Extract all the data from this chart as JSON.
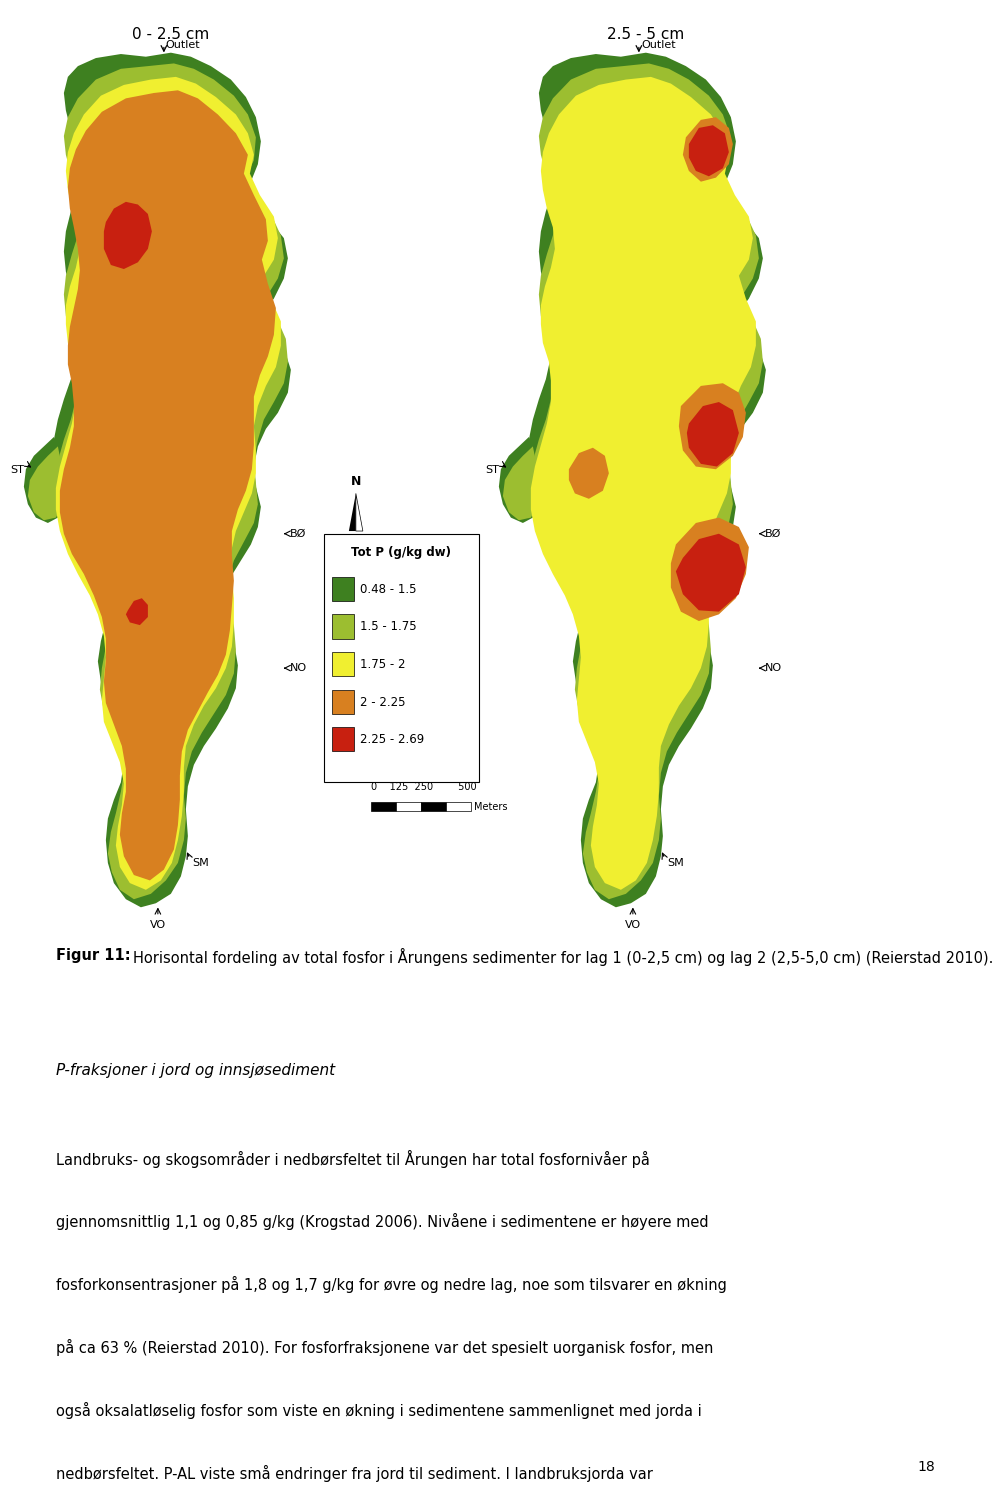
{
  "fig_width": 9.6,
  "fig_height": 14.69,
  "bg_color": "#ffffff",
  "map_bg_color": "#ccdce8",
  "title_left": "0 - 2.5 cm",
  "title_right": "2.5 - 5 cm",
  "legend_title": "Tot P (g/kg dw)",
  "legend_entries": [
    "0.48 - 1.5",
    "1.5 - 1.75",
    "1.75 - 2",
    "2 - 2.25",
    "2.25 - 2.69"
  ],
  "legend_colors": [
    "#3e8020",
    "#9cbe30",
    "#f0ef30",
    "#d88020",
    "#c82010"
  ],
  "caption_bold": "Figur 11:",
  "caption_rest": " Horisontal fordeling av total fosfor i Årungens sedimenter for lag 1 (0-2,5 cm) og lag 2 (2,5-5,0 cm) (Reierstad 2010).",
  "section_heading": "P-fraksjoner i jord og innsjøsediment",
  "body_lines": [
    "Landbruks- og skogsområder i nedbørsfeltet til Årungen har total fosfornivåer på",
    "gjennomsnittlig 1,1 og 0,85 g/kg (Krogstad 2006). Nivåene i sedimentene er høyere med",
    "fosforkonsentrasjoner på 1,8 og 1,7 g/kg for øvre og nedre lag, noe som tilsvarer en økning",
    "på ca 63 % (Reierstad 2010). For fosforfraksjonene var det spesielt uorganisk fosfor, men",
    "også oksalatløselig fosfor som viste en økning i sedimentene sammenlignet med jorda i",
    "nedbørsfeltet. P-AL viste små endringer fra jord til sediment. I landbruksjorda var"
  ],
  "page_number": "18"
}
